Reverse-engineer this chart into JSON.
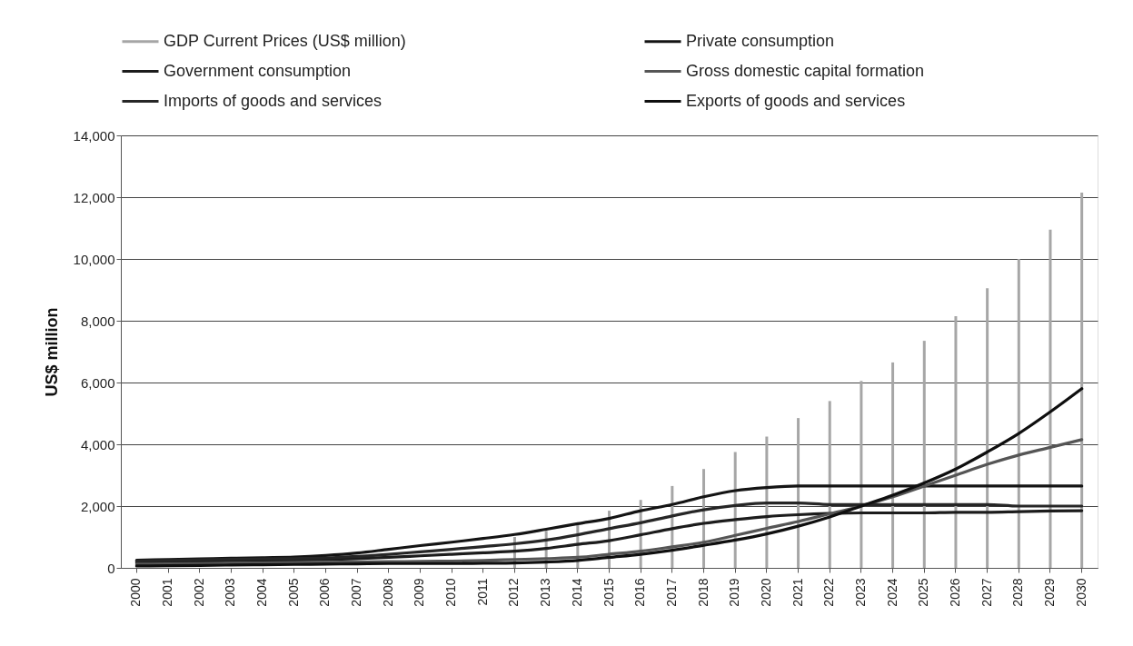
{
  "chart_data": {
    "type": "line",
    "ylabel": "US$ million",
    "categories": [
      "2000",
      "2001",
      "2002",
      "2003",
      "2004",
      "2005",
      "2006",
      "2007",
      "2008",
      "2009",
      "2010",
      "2011",
      "2012",
      "2013",
      "2014",
      "2015",
      "2016",
      "2017",
      "2018",
      "2019",
      "2020",
      "2021",
      "2022",
      "2023",
      "2024",
      "2025",
      "2026",
      "2027",
      "2028",
      "2029",
      "2030"
    ],
    "series": [
      {
        "name": "GDP Current Prices (US$ million)",
        "type": "bar",
        "color": "#a6a6a6",
        "values": [
          null,
          null,
          null,
          null,
          null,
          null,
          null,
          null,
          null,
          null,
          null,
          null,
          1000,
          1200,
          1400,
          1850,
          2200,
          2650,
          3200,
          3750,
          4250,
          4850,
          5400,
          6050,
          6650,
          7350,
          8150,
          9050,
          10000,
          10950,
          12150
        ]
      },
      {
        "name": "Private consumption",
        "color": "#141414",
        "values": [
          250,
          270,
          290,
          310,
          330,
          350,
          400,
          480,
          600,
          720,
          830,
          950,
          1080,
          1250,
          1430,
          1600,
          1850,
          2050,
          2300,
          2500,
          2600,
          2650,
          2650,
          2650,
          2650,
          2650,
          2650,
          2650,
          2650,
          2650,
          2650
        ]
      },
      {
        "name": "Government consumption",
        "color": "#1c1c1c",
        "values": [
          180,
          200,
          220,
          230,
          240,
          250,
          270,
          300,
          340,
          390,
          440,
          490,
          540,
          630,
          760,
          880,
          1070,
          1270,
          1440,
          1560,
          1660,
          1720,
          1760,
          1780,
          1780,
          1780,
          1800,
          1800,
          1820,
          1840,
          1850
        ]
      },
      {
        "name": "Gross domestic capital formation",
        "color": "#555555",
        "values": [
          120,
          130,
          140,
          150,
          160,
          170,
          180,
          190,
          200,
          210,
          220,
          240,
          270,
          300,
          340,
          440,
          540,
          680,
          830,
          1050,
          1280,
          1500,
          1750,
          2000,
          2300,
          2650,
          3000,
          3350,
          3650,
          3900,
          4150
        ]
      },
      {
        "name": "Imports of goods and services",
        "color": "#262626",
        "values": [
          220,
          240,
          260,
          280,
          290,
          300,
          320,
          370,
          440,
          520,
          600,
          690,
          780,
          900,
          1070,
          1270,
          1460,
          1680,
          1880,
          2020,
          2100,
          2100,
          2050,
          2050,
          2050,
          2050,
          2050,
          2050,
          2000,
          2000,
          2000
        ]
      },
      {
        "name": "Exports of goods and services",
        "color": "#0f0f0f",
        "values": [
          60,
          70,
          80,
          90,
          100,
          110,
          120,
          130,
          140,
          140,
          140,
          150,
          160,
          190,
          240,
          340,
          440,
          570,
          730,
          900,
          1100,
          1350,
          1650,
          2000,
          2350,
          2750,
          3200,
          3750,
          4350,
          5050,
          5800
        ]
      }
    ],
    "ylim": [
      0,
      14000
    ],
    "yticks": [
      0,
      {
        "value": 2000,
        "label": "2,000"
      },
      {
        "value": 4000,
        "label": "4,000"
      },
      {
        "value": 6000,
        "label": "6,000"
      },
      {
        "value": 8000,
        "label": "8,000"
      },
      {
        "value": 10000,
        "label": "10,000"
      },
      {
        "value": 12000,
        "label": "12,000"
      },
      {
        "value": 14000,
        "label": "14,000"
      }
    ],
    "grid": "y",
    "legend": "top"
  }
}
